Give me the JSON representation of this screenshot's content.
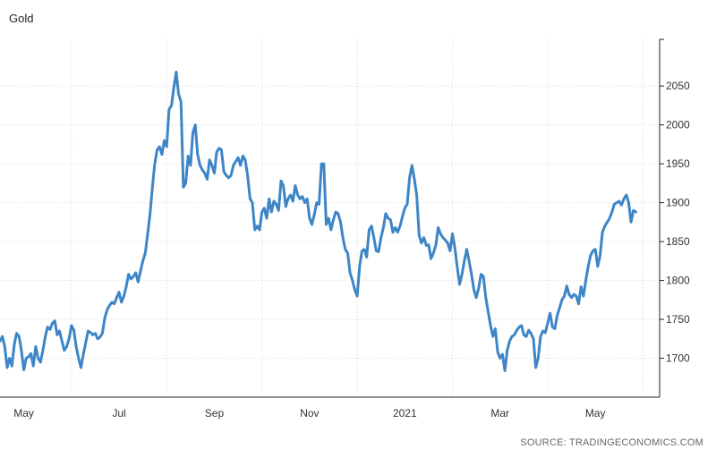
{
  "chart_data": {
    "type": "line",
    "title": "Gold",
    "source": "SOURCE: TRADINGECONOMICS.COM",
    "ylim": [
      1650,
      2110
    ],
    "y_ticks": [
      1700,
      1750,
      1800,
      1850,
      1900,
      1950,
      2000,
      2050
    ],
    "y_axis_position": "right",
    "grid": true,
    "x_ticks": [
      {
        "label": "May",
        "t": 0.5
      },
      {
        "label": "Jul",
        "t": 2.5
      },
      {
        "label": "Sep",
        "t": 4.5
      },
      {
        "label": "Nov",
        "t": 6.5
      },
      {
        "label": "2021",
        "t": 8.5
      },
      {
        "label": "Mar",
        "t": 10.5
      },
      {
        "label": "May",
        "t": 12.5
      }
    ],
    "x_gridlines": [
      1.5,
      3.5,
      5.5,
      7.5,
      9.5,
      11.5,
      13.5
    ],
    "xlim": [
      0,
      13.85
    ],
    "series": [
      {
        "name": "",
        "color": "#3d85c6",
        "points": [
          [
            0.0,
            1722
          ],
          [
            0.05,
            1728
          ],
          [
            0.1,
            1715
          ],
          [
            0.15,
            1688
          ],
          [
            0.2,
            1700
          ],
          [
            0.25,
            1690
          ],
          [
            0.3,
            1718
          ],
          [
            0.35,
            1732
          ],
          [
            0.4,
            1728
          ],
          [
            0.45,
            1710
          ],
          [
            0.5,
            1685
          ],
          [
            0.55,
            1700
          ],
          [
            0.6,
            1702
          ],
          [
            0.65,
            1706
          ],
          [
            0.7,
            1690
          ],
          [
            0.75,
            1715
          ],
          [
            0.8,
            1700
          ],
          [
            0.85,
            1695
          ],
          [
            0.9,
            1710
          ],
          [
            0.95,
            1728
          ],
          [
            1.0,
            1740
          ],
          [
            1.05,
            1737
          ],
          [
            1.1,
            1745
          ],
          [
            1.15,
            1748
          ],
          [
            1.2,
            1730
          ],
          [
            1.25,
            1735
          ],
          [
            1.3,
            1722
          ],
          [
            1.35,
            1710
          ],
          [
            1.4,
            1715
          ],
          [
            1.45,
            1725
          ],
          [
            1.5,
            1742
          ],
          [
            1.55,
            1736
          ],
          [
            1.6,
            1715
          ],
          [
            1.65,
            1700
          ],
          [
            1.7,
            1688
          ],
          [
            1.75,
            1705
          ],
          [
            1.8,
            1720
          ],
          [
            1.85,
            1735
          ],
          [
            1.9,
            1733
          ],
          [
            1.95,
            1730
          ],
          [
            2.0,
            1732
          ],
          [
            2.05,
            1725
          ],
          [
            2.1,
            1727
          ],
          [
            2.15,
            1732
          ],
          [
            2.2,
            1752
          ],
          [
            2.25,
            1762
          ],
          [
            2.3,
            1768
          ],
          [
            2.35,
            1772
          ],
          [
            2.4,
            1770
          ],
          [
            2.45,
            1778
          ],
          [
            2.5,
            1785
          ],
          [
            2.55,
            1772
          ],
          [
            2.6,
            1780
          ],
          [
            2.65,
            1792
          ],
          [
            2.7,
            1808
          ],
          [
            2.75,
            1802
          ],
          [
            2.8,
            1805
          ],
          [
            2.85,
            1810
          ],
          [
            2.9,
            1798
          ],
          [
            2.95,
            1812
          ],
          [
            3.0,
            1825
          ],
          [
            3.05,
            1835
          ],
          [
            3.1,
            1860
          ],
          [
            3.15,
            1885
          ],
          [
            3.2,
            1920
          ],
          [
            3.25,
            1950
          ],
          [
            3.3,
            1968
          ],
          [
            3.35,
            1972
          ],
          [
            3.4,
            1962
          ],
          [
            3.45,
            1980
          ],
          [
            3.5,
            1972
          ],
          [
            3.55,
            2020
          ],
          [
            3.6,
            2025
          ],
          [
            3.65,
            2048
          ],
          [
            3.7,
            2068
          ],
          [
            3.75,
            2040
          ],
          [
            3.8,
            2030
          ],
          [
            3.85,
            1920
          ],
          [
            3.9,
            1925
          ],
          [
            3.95,
            1960
          ],
          [
            4.0,
            1948
          ],
          [
            4.05,
            1990
          ],
          [
            4.1,
            2000
          ],
          [
            4.15,
            1962
          ],
          [
            4.2,
            1948
          ],
          [
            4.25,
            1942
          ],
          [
            4.3,
            1938
          ],
          [
            4.35,
            1930
          ],
          [
            4.4,
            1955
          ],
          [
            4.45,
            1948
          ],
          [
            4.5,
            1938
          ],
          [
            4.55,
            1965
          ],
          [
            4.6,
            1970
          ],
          [
            4.65,
            1968
          ],
          [
            4.7,
            1940
          ],
          [
            4.75,
            1935
          ],
          [
            4.8,
            1932
          ],
          [
            4.85,
            1935
          ],
          [
            4.9,
            1948
          ],
          [
            4.95,
            1953
          ],
          [
            5.0,
            1958
          ],
          [
            5.05,
            1948
          ],
          [
            5.1,
            1960
          ],
          [
            5.15,
            1955
          ],
          [
            5.2,
            1935
          ],
          [
            5.25,
            1905
          ],
          [
            5.3,
            1900
          ],
          [
            5.35,
            1865
          ],
          [
            5.4,
            1870
          ],
          [
            5.45,
            1865
          ],
          [
            5.5,
            1888
          ],
          [
            5.55,
            1893
          ],
          [
            5.6,
            1880
          ],
          [
            5.65,
            1905
          ],
          [
            5.7,
            1888
          ],
          [
            5.75,
            1902
          ],
          [
            5.8,
            1898
          ],
          [
            5.85,
            1890
          ],
          [
            5.9,
            1928
          ],
          [
            5.95,
            1922
          ],
          [
            6.0,
            1895
          ],
          [
            6.05,
            1905
          ],
          [
            6.1,
            1910
          ],
          [
            6.15,
            1902
          ],
          [
            6.2,
            1922
          ],
          [
            6.25,
            1910
          ],
          [
            6.3,
            1905
          ],
          [
            6.35,
            1908
          ],
          [
            6.4,
            1900
          ],
          [
            6.45,
            1905
          ],
          [
            6.5,
            1880
          ],
          [
            6.55,
            1872
          ],
          [
            6.6,
            1885
          ],
          [
            6.65,
            1900
          ],
          [
            6.7,
            1898
          ],
          [
            6.75,
            1950
          ],
          [
            6.8,
            1950
          ],
          [
            6.85,
            1872
          ],
          [
            6.9,
            1880
          ],
          [
            6.95,
            1865
          ],
          [
            7.0,
            1878
          ],
          [
            7.05,
            1888
          ],
          [
            7.1,
            1886
          ],
          [
            7.15,
            1875
          ],
          [
            7.2,
            1855
          ],
          [
            7.25,
            1840
          ],
          [
            7.3,
            1835
          ],
          [
            7.35,
            1810
          ],
          [
            7.4,
            1800
          ],
          [
            7.45,
            1788
          ],
          [
            7.5,
            1780
          ],
          [
            7.55,
            1818
          ],
          [
            7.6,
            1838
          ],
          [
            7.65,
            1840
          ],
          [
            7.7,
            1830
          ],
          [
            7.75,
            1865
          ],
          [
            7.8,
            1870
          ],
          [
            7.85,
            1855
          ],
          [
            7.9,
            1838
          ],
          [
            7.95,
            1837
          ],
          [
            8.0,
            1855
          ],
          [
            8.05,
            1868
          ],
          [
            8.1,
            1886
          ],
          [
            8.15,
            1880
          ],
          [
            8.2,
            1878
          ],
          [
            8.25,
            1862
          ],
          [
            8.3,
            1868
          ],
          [
            8.35,
            1862
          ],
          [
            8.4,
            1870
          ],
          [
            8.45,
            1882
          ],
          [
            8.5,
            1893
          ],
          [
            8.55,
            1898
          ],
          [
            8.6,
            1932
          ],
          [
            8.65,
            1948
          ],
          [
            8.7,
            1930
          ],
          [
            8.75,
            1910
          ],
          [
            8.8,
            1858
          ],
          [
            8.85,
            1848
          ],
          [
            8.9,
            1855
          ],
          [
            8.95,
            1845
          ],
          [
            9.0,
            1846
          ],
          [
            9.05,
            1828
          ],
          [
            9.1,
            1835
          ],
          [
            9.15,
            1845
          ],
          [
            9.2,
            1868
          ],
          [
            9.25,
            1860
          ],
          [
            9.3,
            1855
          ],
          [
            9.35,
            1852
          ],
          [
            9.4,
            1848
          ],
          [
            9.45,
            1838
          ],
          [
            9.5,
            1860
          ],
          [
            9.55,
            1842
          ],
          [
            9.6,
            1818
          ],
          [
            9.65,
            1795
          ],
          [
            9.7,
            1808
          ],
          [
            9.75,
            1825
          ],
          [
            9.8,
            1840
          ],
          [
            9.85,
            1825
          ],
          [
            9.9,
            1808
          ],
          [
            9.95,
            1788
          ],
          [
            10.0,
            1778
          ],
          [
            10.05,
            1790
          ],
          [
            10.1,
            1808
          ],
          [
            10.15,
            1805
          ],
          [
            10.2,
            1778
          ],
          [
            10.25,
            1760
          ],
          [
            10.3,
            1742
          ],
          [
            10.35,
            1728
          ],
          [
            10.4,
            1738
          ],
          [
            10.45,
            1708
          ],
          [
            10.5,
            1700
          ],
          [
            10.55,
            1705
          ],
          [
            10.6,
            1684
          ],
          [
            10.65,
            1710
          ],
          [
            10.7,
            1722
          ],
          [
            10.75,
            1728
          ],
          [
            10.8,
            1730
          ],
          [
            10.85,
            1736
          ],
          [
            10.9,
            1740
          ],
          [
            10.95,
            1742
          ],
          [
            11.0,
            1730
          ],
          [
            11.05,
            1728
          ],
          [
            11.1,
            1736
          ],
          [
            11.15,
            1732
          ],
          [
            11.2,
            1725
          ],
          [
            11.25,
            1688
          ],
          [
            11.3,
            1700
          ],
          [
            11.35,
            1728
          ],
          [
            11.4,
            1735
          ],
          [
            11.45,
            1733
          ],
          [
            11.5,
            1745
          ],
          [
            11.55,
            1758
          ],
          [
            11.6,
            1740
          ],
          [
            11.65,
            1738
          ],
          [
            11.7,
            1755
          ],
          [
            11.75,
            1765
          ],
          [
            11.8,
            1775
          ],
          [
            11.85,
            1780
          ],
          [
            11.9,
            1793
          ],
          [
            11.95,
            1782
          ],
          [
            12.0,
            1778
          ],
          [
            12.05,
            1782
          ],
          [
            12.1,
            1780
          ],
          [
            12.15,
            1770
          ],
          [
            12.2,
            1792
          ],
          [
            12.25,
            1780
          ],
          [
            12.3,
            1800
          ],
          [
            12.35,
            1818
          ],
          [
            12.4,
            1832
          ],
          [
            12.45,
            1838
          ],
          [
            12.5,
            1840
          ],
          [
            12.55,
            1818
          ],
          [
            12.6,
            1832
          ],
          [
            12.65,
            1862
          ],
          [
            12.7,
            1870
          ],
          [
            12.75,
            1875
          ],
          [
            12.8,
            1880
          ],
          [
            12.85,
            1888
          ],
          [
            12.9,
            1898
          ],
          [
            12.95,
            1900
          ],
          [
            13.0,
            1902
          ],
          [
            13.05,
            1897
          ],
          [
            13.1,
            1905
          ],
          [
            13.15,
            1910
          ],
          [
            13.2,
            1900
          ],
          [
            13.25,
            1875
          ],
          [
            13.3,
            1890
          ],
          [
            13.35,
            1888
          ]
        ]
      }
    ]
  }
}
